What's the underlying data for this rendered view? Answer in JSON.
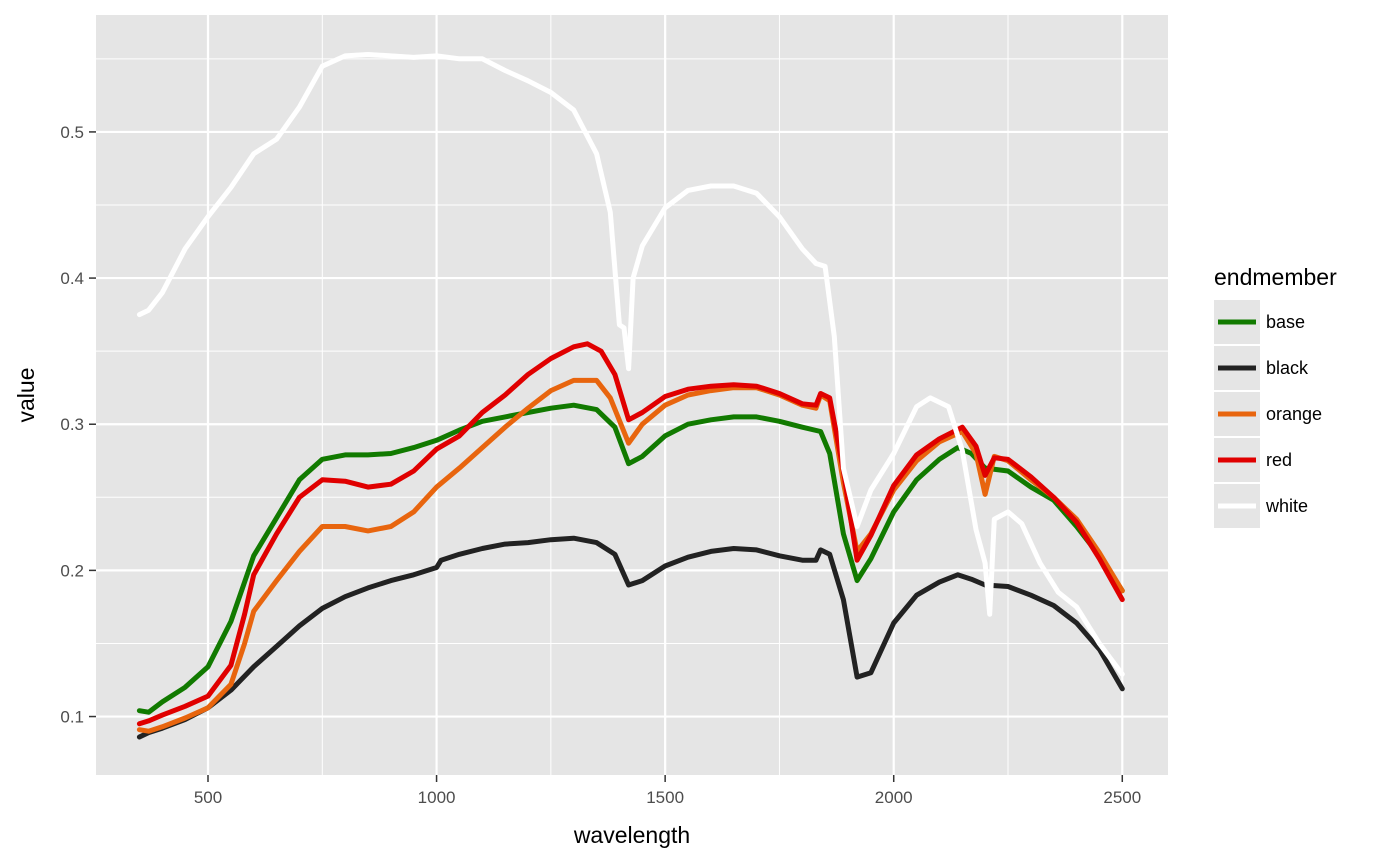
{
  "chart_data": {
    "type": "line",
    "xlabel": "wavelength",
    "ylabel": "value",
    "xlim": [
      255,
      2600
    ],
    "ylim": [
      0.06,
      0.58
    ],
    "x_ticks": [
      500,
      1000,
      1500,
      2000,
      2500
    ],
    "y_ticks": [
      0.1,
      0.2,
      0.3,
      0.4,
      0.5
    ],
    "x_tick_labels": [
      "500",
      "1000",
      "1500",
      "2000",
      "2500"
    ],
    "y_tick_labels": [
      "0.1",
      "0.2",
      "0.3",
      "0.4",
      "0.5"
    ],
    "grid": true,
    "panel_background": "#e5e5e5",
    "grid_color": "#ffffff",
    "legend": {
      "title": "endmember",
      "placement": "right"
    },
    "series": [
      {
        "name": "base",
        "color": "#117a00",
        "points": [
          [
            350,
            0.104
          ],
          [
            370,
            0.103
          ],
          [
            400,
            0.11
          ],
          [
            450,
            0.12
          ],
          [
            500,
            0.134
          ],
          [
            550,
            0.165
          ],
          [
            600,
            0.21
          ],
          [
            650,
            0.236
          ],
          [
            700,
            0.262
          ],
          [
            750,
            0.276
          ],
          [
            800,
            0.279
          ],
          [
            850,
            0.279
          ],
          [
            900,
            0.28
          ],
          [
            950,
            0.284
          ],
          [
            1000,
            0.289
          ],
          [
            1050,
            0.296
          ],
          [
            1100,
            0.302
          ],
          [
            1150,
            0.305
          ],
          [
            1200,
            0.308
          ],
          [
            1250,
            0.311
          ],
          [
            1300,
            0.313
          ],
          [
            1350,
            0.31
          ],
          [
            1390,
            0.298
          ],
          [
            1420,
            0.273
          ],
          [
            1450,
            0.278
          ],
          [
            1500,
            0.292
          ],
          [
            1550,
            0.3
          ],
          [
            1600,
            0.303
          ],
          [
            1650,
            0.305
          ],
          [
            1700,
            0.305
          ],
          [
            1750,
            0.302
          ],
          [
            1800,
            0.298
          ],
          [
            1840,
            0.295
          ],
          [
            1860,
            0.28
          ],
          [
            1890,
            0.225
          ],
          [
            1920,
            0.193
          ],
          [
            1950,
            0.208
          ],
          [
            2000,
            0.24
          ],
          [
            2050,
            0.262
          ],
          [
            2100,
            0.276
          ],
          [
            2140,
            0.284
          ],
          [
            2170,
            0.28
          ],
          [
            2200,
            0.27
          ],
          [
            2250,
            0.268
          ],
          [
            2300,
            0.257
          ],
          [
            2350,
            0.248
          ],
          [
            2400,
            0.23
          ],
          [
            2450,
            0.21
          ],
          [
            2500,
            0.186
          ]
        ]
      },
      {
        "name": "black",
        "color": "#222222",
        "points": [
          [
            350,
            0.086
          ],
          [
            370,
            0.089
          ],
          [
            400,
            0.092
          ],
          [
            450,
            0.098
          ],
          [
            500,
            0.106
          ],
          [
            550,
            0.118
          ],
          [
            600,
            0.134
          ],
          [
            650,
            0.148
          ],
          [
            700,
            0.162
          ],
          [
            750,
            0.174
          ],
          [
            800,
            0.182
          ],
          [
            850,
            0.188
          ],
          [
            900,
            0.193
          ],
          [
            950,
            0.197
          ],
          [
            1000,
            0.202
          ],
          [
            1010,
            0.207
          ],
          [
            1050,
            0.211
          ],
          [
            1100,
            0.215
          ],
          [
            1150,
            0.218
          ],
          [
            1200,
            0.219
          ],
          [
            1250,
            0.221
          ],
          [
            1300,
            0.222
          ],
          [
            1350,
            0.219
          ],
          [
            1390,
            0.211
          ],
          [
            1420,
            0.19
          ],
          [
            1450,
            0.193
          ],
          [
            1500,
            0.203
          ],
          [
            1550,
            0.209
          ],
          [
            1600,
            0.213
          ],
          [
            1650,
            0.215
          ],
          [
            1700,
            0.214
          ],
          [
            1750,
            0.21
          ],
          [
            1800,
            0.207
          ],
          [
            1830,
            0.207
          ],
          [
            1840,
            0.214
          ],
          [
            1860,
            0.211
          ],
          [
            1890,
            0.18
          ],
          [
            1920,
            0.127
          ],
          [
            1950,
            0.13
          ],
          [
            2000,
            0.164
          ],
          [
            2050,
            0.183
          ],
          [
            2100,
            0.192
          ],
          [
            2140,
            0.197
          ],
          [
            2170,
            0.194
          ],
          [
            2200,
            0.19
          ],
          [
            2250,
            0.189
          ],
          [
            2300,
            0.183
          ],
          [
            2350,
            0.176
          ],
          [
            2400,
            0.164
          ],
          [
            2450,
            0.146
          ],
          [
            2500,
            0.119
          ]
        ]
      },
      {
        "name": "orange",
        "color": "#e8650e",
        "points": [
          [
            350,
            0.091
          ],
          [
            370,
            0.09
          ],
          [
            400,
            0.093
          ],
          [
            450,
            0.099
          ],
          [
            500,
            0.106
          ],
          [
            550,
            0.122
          ],
          [
            580,
            0.15
          ],
          [
            600,
            0.172
          ],
          [
            650,
            0.193
          ],
          [
            700,
            0.213
          ],
          [
            750,
            0.23
          ],
          [
            800,
            0.23
          ],
          [
            850,
            0.227
          ],
          [
            900,
            0.23
          ],
          [
            950,
            0.24
          ],
          [
            1000,
            0.257
          ],
          [
            1050,
            0.27
          ],
          [
            1100,
            0.284
          ],
          [
            1150,
            0.298
          ],
          [
            1200,
            0.311
          ],
          [
            1250,
            0.323
          ],
          [
            1300,
            0.33
          ],
          [
            1350,
            0.33
          ],
          [
            1380,
            0.318
          ],
          [
            1420,
            0.287
          ],
          [
            1450,
            0.3
          ],
          [
            1500,
            0.313
          ],
          [
            1550,
            0.32
          ],
          [
            1600,
            0.323
          ],
          [
            1650,
            0.325
          ],
          [
            1700,
            0.325
          ],
          [
            1750,
            0.32
          ],
          [
            1800,
            0.313
          ],
          [
            1830,
            0.311
          ],
          [
            1840,
            0.32
          ],
          [
            1860,
            0.316
          ],
          [
            1890,
            0.26
          ],
          [
            1920,
            0.213
          ],
          [
            1950,
            0.225
          ],
          [
            2000,
            0.255
          ],
          [
            2050,
            0.275
          ],
          [
            2100,
            0.288
          ],
          [
            2150,
            0.295
          ],
          [
            2180,
            0.28
          ],
          [
            2200,
            0.252
          ],
          [
            2220,
            0.278
          ],
          [
            2250,
            0.275
          ],
          [
            2300,
            0.262
          ],
          [
            2350,
            0.25
          ],
          [
            2400,
            0.235
          ],
          [
            2450,
            0.212
          ],
          [
            2500,
            0.186
          ]
        ]
      },
      {
        "name": "red",
        "color": "#e00000",
        "points": [
          [
            350,
            0.095
          ],
          [
            370,
            0.097
          ],
          [
            400,
            0.101
          ],
          [
            450,
            0.107
          ],
          [
            500,
            0.114
          ],
          [
            550,
            0.135
          ],
          [
            580,
            0.17
          ],
          [
            600,
            0.197
          ],
          [
            650,
            0.225
          ],
          [
            700,
            0.25
          ],
          [
            750,
            0.262
          ],
          [
            800,
            0.261
          ],
          [
            850,
            0.257
          ],
          [
            900,
            0.259
          ],
          [
            950,
            0.268
          ],
          [
            1000,
            0.283
          ],
          [
            1050,
            0.292
          ],
          [
            1100,
            0.308
          ],
          [
            1150,
            0.32
          ],
          [
            1200,
            0.334
          ],
          [
            1250,
            0.345
          ],
          [
            1300,
            0.353
          ],
          [
            1330,
            0.355
          ],
          [
            1360,
            0.35
          ],
          [
            1390,
            0.334
          ],
          [
            1420,
            0.303
          ],
          [
            1450,
            0.308
          ],
          [
            1500,
            0.319
          ],
          [
            1550,
            0.324
          ],
          [
            1600,
            0.326
          ],
          [
            1650,
            0.327
          ],
          [
            1700,
            0.326
          ],
          [
            1750,
            0.321
          ],
          [
            1800,
            0.314
          ],
          [
            1830,
            0.313
          ],
          [
            1840,
            0.321
          ],
          [
            1860,
            0.318
          ],
          [
            1890,
            0.268
          ],
          [
            1920,
            0.207
          ],
          [
            1950,
            0.224
          ],
          [
            2000,
            0.258
          ],
          [
            2050,
            0.279
          ],
          [
            2100,
            0.29
          ],
          [
            2150,
            0.298
          ],
          [
            2180,
            0.285
          ],
          [
            2200,
            0.265
          ],
          [
            2220,
            0.277
          ],
          [
            2250,
            0.276
          ],
          [
            2300,
            0.264
          ],
          [
            2350,
            0.25
          ],
          [
            2400,
            0.233
          ],
          [
            2450,
            0.208
          ],
          [
            2500,
            0.18
          ]
        ]
      },
      {
        "name": "white",
        "color": "#ffffff",
        "points": [
          [
            350,
            0.375
          ],
          [
            370,
            0.378
          ],
          [
            400,
            0.39
          ],
          [
            450,
            0.42
          ],
          [
            500,
            0.442
          ],
          [
            550,
            0.462
          ],
          [
            600,
            0.485
          ],
          [
            650,
            0.495
          ],
          [
            700,
            0.517
          ],
          [
            750,
            0.545
          ],
          [
            800,
            0.552
          ],
          [
            850,
            0.553
          ],
          [
            900,
            0.552
          ],
          [
            950,
            0.551
          ],
          [
            1000,
            0.552
          ],
          [
            1050,
            0.55
          ],
          [
            1100,
            0.55
          ],
          [
            1150,
            0.542
          ],
          [
            1200,
            0.535
          ],
          [
            1250,
            0.527
          ],
          [
            1300,
            0.515
          ],
          [
            1350,
            0.485
          ],
          [
            1380,
            0.445
          ],
          [
            1400,
            0.368
          ],
          [
            1410,
            0.366
          ],
          [
            1420,
            0.338
          ],
          [
            1430,
            0.4
          ],
          [
            1450,
            0.422
          ],
          [
            1500,
            0.448
          ],
          [
            1550,
            0.46
          ],
          [
            1600,
            0.463
          ],
          [
            1650,
            0.463
          ],
          [
            1700,
            0.458
          ],
          [
            1750,
            0.442
          ],
          [
            1800,
            0.42
          ],
          [
            1830,
            0.41
          ],
          [
            1850,
            0.408
          ],
          [
            1870,
            0.36
          ],
          [
            1890,
            0.27
          ],
          [
            1920,
            0.23
          ],
          [
            1950,
            0.255
          ],
          [
            2000,
            0.28
          ],
          [
            2050,
            0.312
          ],
          [
            2080,
            0.318
          ],
          [
            2120,
            0.312
          ],
          [
            2150,
            0.282
          ],
          [
            2180,
            0.228
          ],
          [
            2200,
            0.205
          ],
          [
            2210,
            0.17
          ],
          [
            2220,
            0.235
          ],
          [
            2250,
            0.24
          ],
          [
            2280,
            0.232
          ],
          [
            2320,
            0.205
          ],
          [
            2360,
            0.185
          ],
          [
            2400,
            0.175
          ],
          [
            2450,
            0.15
          ],
          [
            2500,
            0.129
          ]
        ]
      }
    ]
  }
}
